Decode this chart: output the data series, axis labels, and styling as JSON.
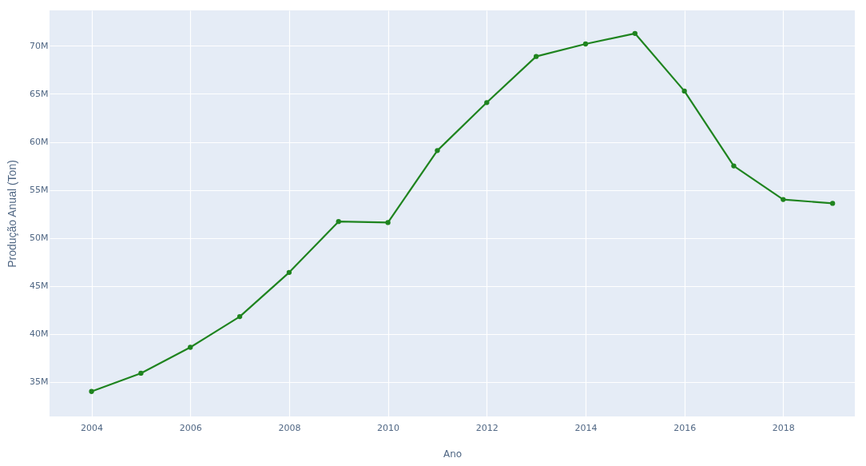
{
  "chart_data": {
    "type": "line",
    "xlabel": "Ano",
    "ylabel": "Produção Anual (Ton)",
    "x": [
      2004,
      2005,
      2006,
      2007,
      2008,
      2009,
      2010,
      2011,
      2012,
      2013,
      2014,
      2015,
      2016,
      2017,
      2018,
      2019
    ],
    "series": [
      {
        "color": "#1f841f",
        "values": [
          34000000,
          35900000,
          38600000,
          41800000,
          46400000,
          51700000,
          51600000,
          59100000,
          64100000,
          68900000,
          70200000,
          71300000,
          65300000,
          57500000,
          54000000,
          53600000
        ]
      }
    ],
    "xlim": [
      2003.15,
      2019.45
    ],
    "xticks": [
      2004,
      2006,
      2008,
      2010,
      2012,
      2014,
      2016,
      2018
    ],
    "ylim": [
      31400000,
      73700000
    ],
    "yticks": [
      {
        "value": 35000000,
        "label": "35M"
      },
      {
        "value": 40000000,
        "label": "40M"
      },
      {
        "value": 45000000,
        "label": "45M"
      },
      {
        "value": 50000000,
        "label": "50M"
      },
      {
        "value": 55000000,
        "label": "55M"
      },
      {
        "value": 60000000,
        "label": "60M"
      },
      {
        "value": 65000000,
        "label": "65M"
      },
      {
        "value": 70000000,
        "label": "70M"
      }
    ],
    "grid": true,
    "marker": "circle",
    "line_style": "solid"
  }
}
